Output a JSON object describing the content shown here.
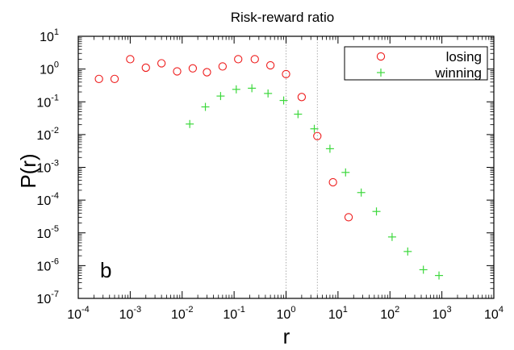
{
  "chart_data": {
    "type": "scatter",
    "title": "Risk-reward ratio",
    "panel_label": "b",
    "xlabel": "r",
    "ylabel": "P(r)",
    "x_scale": "log",
    "y_scale": "log",
    "xlim": [
      0.0001,
      10000
    ],
    "ylim": [
      1e-07,
      10
    ],
    "x_ticks": [
      {
        "base": "10",
        "exp": "-4",
        "value": 0.0001
      },
      {
        "base": "10",
        "exp": "-3",
        "value": 0.001
      },
      {
        "base": "10",
        "exp": "-2",
        "value": 0.01
      },
      {
        "base": "10",
        "exp": "-1",
        "value": 0.1
      },
      {
        "base": "10",
        "exp": "0",
        "value": 1
      },
      {
        "base": "10",
        "exp": "1",
        "value": 10
      },
      {
        "base": "10",
        "exp": "2",
        "value": 100
      },
      {
        "base": "10",
        "exp": "3",
        "value": 1000
      },
      {
        "base": "10",
        "exp": "4",
        "value": 10000
      }
    ],
    "y_ticks": [
      {
        "base": "10",
        "exp": "-7",
        "value": 1e-07
      },
      {
        "base": "10",
        "exp": "-6",
        "value": 1e-06
      },
      {
        "base": "10",
        "exp": "-5",
        "value": 1e-05
      },
      {
        "base": "10",
        "exp": "-4",
        "value": 0.0001
      },
      {
        "base": "10",
        "exp": "-3",
        "value": 0.001
      },
      {
        "base": "10",
        "exp": "-2",
        "value": 0.01
      },
      {
        "base": "10",
        "exp": "-1",
        "value": 0.1
      },
      {
        "base": "10",
        "exp": "0",
        "value": 1
      },
      {
        "base": "10",
        "exp": "1",
        "value": 10
      }
    ],
    "reference_lines_x": [
      1,
      4
    ],
    "legend_position": "top-right",
    "series": [
      {
        "name": "losing",
        "marker": "circle",
        "color": "#ee1c1c",
        "points": [
          [
            0.00025,
            0.5
          ],
          [
            0.0005,
            0.5
          ],
          [
            0.001,
            2.0
          ],
          [
            0.002,
            1.1
          ],
          [
            0.004,
            1.5
          ],
          [
            0.008,
            0.85
          ],
          [
            0.016,
            1.05
          ],
          [
            0.03,
            0.8
          ],
          [
            0.06,
            1.2
          ],
          [
            0.12,
            2.0
          ],
          [
            0.25,
            2.0
          ],
          [
            0.5,
            1.3
          ],
          [
            1.0,
            0.7
          ],
          [
            2.0,
            0.14
          ],
          [
            4.0,
            0.009
          ],
          [
            8.0,
            0.00035
          ],
          [
            16.0,
            3e-05
          ]
        ]
      },
      {
        "name": "winning",
        "marker": "plus",
        "color": "#3cd83c",
        "points": [
          [
            0.014,
            0.021
          ],
          [
            0.028,
            0.07
          ],
          [
            0.055,
            0.15
          ],
          [
            0.11,
            0.24
          ],
          [
            0.22,
            0.26
          ],
          [
            0.45,
            0.18
          ],
          [
            0.9,
            0.11
          ],
          [
            1.7,
            0.042
          ],
          [
            3.5,
            0.015
          ],
          [
            7.0,
            0.0037
          ],
          [
            14.0,
            0.0007
          ],
          [
            28.0,
            0.00017
          ],
          [
            55.0,
            4.5e-05
          ],
          [
            110.0,
            7.5e-06
          ],
          [
            220.0,
            2.7e-06
          ],
          [
            440.0,
            7.5e-07
          ],
          [
            880.0,
            5e-07
          ]
        ]
      }
    ]
  }
}
